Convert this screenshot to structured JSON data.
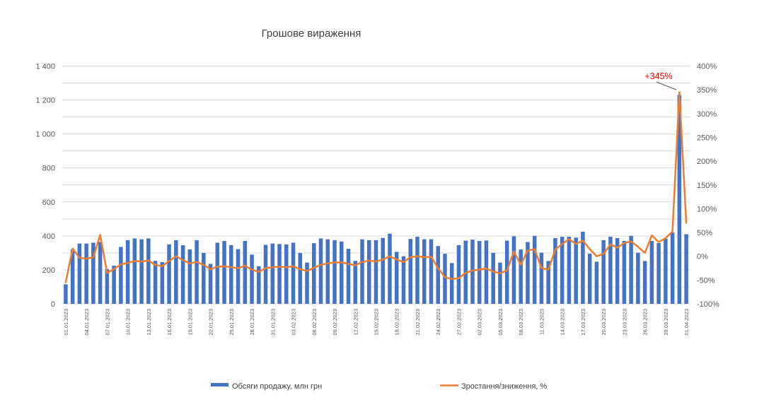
{
  "title": "Грошове вираження",
  "annotation": {
    "text": "+345%",
    "color": "#FF0000"
  },
  "legend": {
    "bar_label": "Обсяги продажу, млн грн",
    "line_label": "Зростання/зниження, %"
  },
  "colors": {
    "bar": "#4472C4",
    "line": "#ED7D31",
    "gridline": "#D9D9D9",
    "axis_text": "#595959",
    "title_text": "#404040",
    "annotation": "#FF0000",
    "leader_line": "#595959"
  },
  "chart_data": {
    "type": "bar",
    "subtype": "combo-bar-line",
    "title": "Грошове вираження",
    "grid": true,
    "legend_position": "bottom",
    "x_label_every": 3,
    "left_axis": {
      "min": 0,
      "max": 1400,
      "label_step": 200,
      "grid_step": 100,
      "labels": [
        "1 400",
        "1 200",
        "1 000",
        "800",
        "600",
        "400",
        "200",
        "0"
      ]
    },
    "right_axis": {
      "min": -100,
      "max": 400,
      "label_step": 50,
      "suffix": "%",
      "labels": [
        "400%",
        "350%",
        "300%",
        "250%",
        "200%",
        "150%",
        "100%",
        "50%",
        "0%",
        "-50%",
        "-100%"
      ]
    },
    "x": [
      "01.01.2023",
      "02.01.2023",
      "03.01.2023",
      "04.01.2023",
      "05.01.2023",
      "06.01.2023",
      "07.01.2023",
      "08.01.2023",
      "09.01.2023",
      "10.01.2023",
      "11.01.2023",
      "12.01.2023",
      "13.01.2023",
      "14.01.2023",
      "15.01.2023",
      "16.01.2023",
      "17.01.2023",
      "18.01.2023",
      "19.01.2023",
      "20.01.2023",
      "21.01.2023",
      "22.01.2023",
      "23.01.2023",
      "24.01.2023",
      "25.01.2023",
      "26.01.2023",
      "27.01.2023",
      "28.01.2023",
      "29.01.2023",
      "30.01.2023",
      "31.01.2023",
      "01.02.2023",
      "02.02.2023",
      "03.02.2023",
      "04.02.2023",
      "05.02.2023",
      "06.02.2023",
      "07.02.2023",
      "08.02.2023",
      "09.02.2023",
      "10.02.2023",
      "11.02.2023",
      "12.02.2023",
      "13.02.2023",
      "14.02.2023",
      "15.02.2023",
      "16.02.2023",
      "17.02.2023",
      "18.02.2023",
      "19.02.2023",
      "20.02.2023",
      "21.02.2023",
      "22.02.2023",
      "23.02.2023",
      "24.02.2023",
      "25.02.2023",
      "26.02.2023",
      "27.02.2023",
      "28.02.2023",
      "01.03.2023",
      "02.03.2023",
      "03.03.2023",
      "04.03.2023",
      "05.03.2023",
      "06.03.2023",
      "07.03.2023",
      "08.03.2023",
      "09.03.2023",
      "10.03.2023",
      "11.03.2023",
      "12.03.2023",
      "13.03.2023",
      "14.03.2023",
      "15.03.2023",
      "16.03.2023",
      "17.03.2023",
      "18.03.2023",
      "19.03.2023",
      "20.03.2023",
      "21.03.2023",
      "22.03.2023",
      "23.03.2023",
      "24.03.2023",
      "25.03.2023",
      "26.03.2023",
      "27.03.2023",
      "28.03.2023",
      "29.03.2023",
      "30.03.2023",
      "31.03.2023",
      "01.04.2023"
    ],
    "series": [
      {
        "name": "Обсяги продажу, млн грн",
        "type": "bar",
        "axis": "left",
        "color": "#4472C4",
        "values": [
          115,
          320,
          355,
          355,
          360,
          365,
          205,
          225,
          335,
          375,
          385,
          380,
          385,
          253,
          246,
          350,
          375,
          345,
          320,
          375,
          300,
          235,
          360,
          370,
          345,
          322,
          370,
          290,
          222,
          347,
          355,
          352,
          350,
          360,
          300,
          243,
          357,
          385,
          380,
          375,
          367,
          324,
          253,
          380,
          375,
          375,
          388,
          413,
          306,
          280,
          382,
          395,
          380,
          380,
          340,
          295,
          240,
          345,
          372,
          378,
          370,
          373,
          300,
          243,
          372,
          398,
          320,
          364,
          400,
          301,
          252,
          387,
          395,
          395,
          390,
          425,
          295,
          248,
          375,
          395,
          387,
          370,
          400,
          301,
          252,
          370,
          358,
          383,
          420,
          1230,
          410
        ]
      },
      {
        "name": "Зростання/зниження, %",
        "type": "line",
        "axis": "right",
        "color": "#ED7D31",
        "values": [
          -55,
          16,
          -3,
          -5,
          -2,
          45,
          -35,
          -27,
          -17,
          -14,
          -10,
          -11,
          -9,
          -18,
          -21,
          -10,
          0,
          -8,
          -15,
          -12,
          -18,
          -27,
          -22,
          -21,
          -23,
          -25,
          -20,
          -28,
          -33,
          -25,
          -23,
          -22,
          -23,
          -21,
          -27,
          -31,
          -24,
          -18,
          -15,
          -13,
          -13,
          -16,
          -19,
          -12,
          -9,
          -11,
          -7,
          0,
          -7,
          -12,
          -2,
          0,
          -2,
          -1,
          -25,
          -44,
          -48,
          -46,
          -35,
          -30,
          -28,
          -26,
          -32,
          -36,
          -30,
          10,
          -18,
          12,
          15,
          -25,
          -28,
          14,
          26,
          36,
          26,
          33,
          15,
          0,
          5,
          25,
          18,
          28,
          31,
          20,
          7,
          44,
          30,
          38,
          52,
          345,
          70
        ]
      }
    ],
    "annotation": {
      "text": "+345%",
      "series": "Зростання/зниження, %",
      "x": "31.03.2023",
      "value": 345
    }
  }
}
